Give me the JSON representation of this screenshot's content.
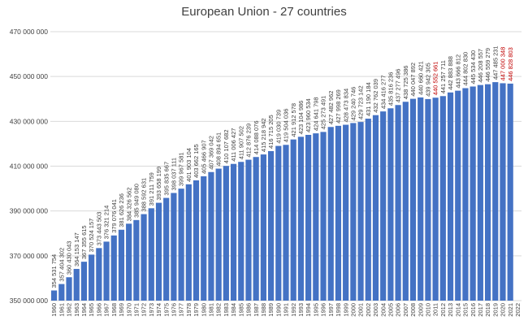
{
  "chart_data": {
    "type": "bar",
    "title": "European Union - 27 countries",
    "xlabel": "",
    "ylabel": "",
    "ylim": [
      350000000,
      470000000
    ],
    "yticks": [
      350000000,
      370000000,
      390000000,
      410000000,
      430000000,
      450000000,
      470000000
    ],
    "ytick_labels": [
      "350 000 000",
      "370 000 000",
      "390 000 000",
      "410 000 000",
      "430 000 000",
      "450 000 000",
      "470 000 000"
    ],
    "grid": true,
    "bar_color": "#4472c4",
    "label_color": "#404040",
    "highlight_color": "#c00000",
    "highlight_categories": [
      "2011",
      "2020",
      "2021"
    ],
    "categories": [
      "1960",
      "1961",
      "1962",
      "1963",
      "1964",
      "1965",
      "1966",
      "1967",
      "1968",
      "1969",
      "1970",
      "1971",
      "1972",
      "1973",
      "1974",
      "1975",
      "1976",
      "1977",
      "1978",
      "1979",
      "1980",
      "1981",
      "1982",
      "1983",
      "1984",
      "1985",
      "1986",
      "1987",
      "1988",
      "1989",
      "1990",
      "1991",
      "1992",
      "1993",
      "1994",
      "1995",
      "1996",
      "1997",
      "1998",
      "1999",
      "2000",
      "2001",
      "2002",
      "2003",
      "2004",
      "2005",
      "2006",
      "2007",
      "2008",
      "2009",
      "2010",
      "2011",
      "2012",
      "2013",
      "2014",
      "2015",
      "2016",
      "2017",
      "2018",
      "2019",
      "2020",
      "2021",
      "2022"
    ],
    "values": [
      354531754,
      357404302,
      360430043,
      364153147,
      367355615,
      370524157,
      373443503,
      376321214,
      379076041,
      381626236,
      384326562,
      385949080,
      388592631,
      391211759,
      393658199,
      395835667,
      398037111,
      399967581,
      401903104,
      403662165,
      405466907,
      407369042,
      408894651,
      410107682,
      411006427,
      411907502,
      412876239,
      414088076,
      415218942,
      416715205,
      419030739,
      419504036,
      421912578,
      423104986,
      423960534,
      424641798,
      425273491,
      427482962,
      427998269,
      428473834,
      429240746,
      429723142,
      431190184,
      432762039,
      434416277,
      435816236,
      437277496,
      438725386,
      440047892,
      440660421,
      439942305,
      440552661,
      441257711,
      442883888,
      443666812,
      444802830,
      445534430,
      446208557,
      446559279,
      447485231,
      447000348,
      446828803,
      null
    ],
    "data_labels": [
      "354 531 754",
      "357 404 302",
      "360 430 043",
      "364 153 147",
      "367 355 615",
      "370 524 157",
      "373 443 503",
      "376 321 214",
      "379 076 041",
      "381 626 236",
      "384 326 562",
      "385 949 080",
      "388 592 631",
      "391 211 759",
      "393 658 199",
      "395 835 667",
      "398 037 111",
      "399 967 581",
      "401 903 104",
      "403 662 165",
      "405 466 907",
      "407 369 042",
      "408 894 651",
      "410 107 682",
      "411 006 427",
      "411 907 502",
      "412 876 239",
      "414 088 076",
      "415 218 942",
      "416 715 205",
      "419 030 739",
      "419 504 036",
      "421 912 578",
      "423 104 986",
      "423 960 534",
      "424 641 798",
      "425 273 491",
      "427 482 962",
      "427 998 269",
      "428 473 834",
      "429 240 746",
      "429 723 142",
      "431 190 184",
      "432 762 039",
      "434 416 277",
      "435 816 236",
      "437 277 496",
      "438 725 386",
      "440 047 892",
      "440 660 421",
      "439 942 305",
      "440 552 661",
      "441 257 711",
      "442 883 888",
      "443 666 812",
      "444 802 830",
      "445 534 430",
      "446 208 557",
      "446 559 279",
      "447 485 231",
      "447 000 348",
      "446 828 803",
      ""
    ]
  }
}
